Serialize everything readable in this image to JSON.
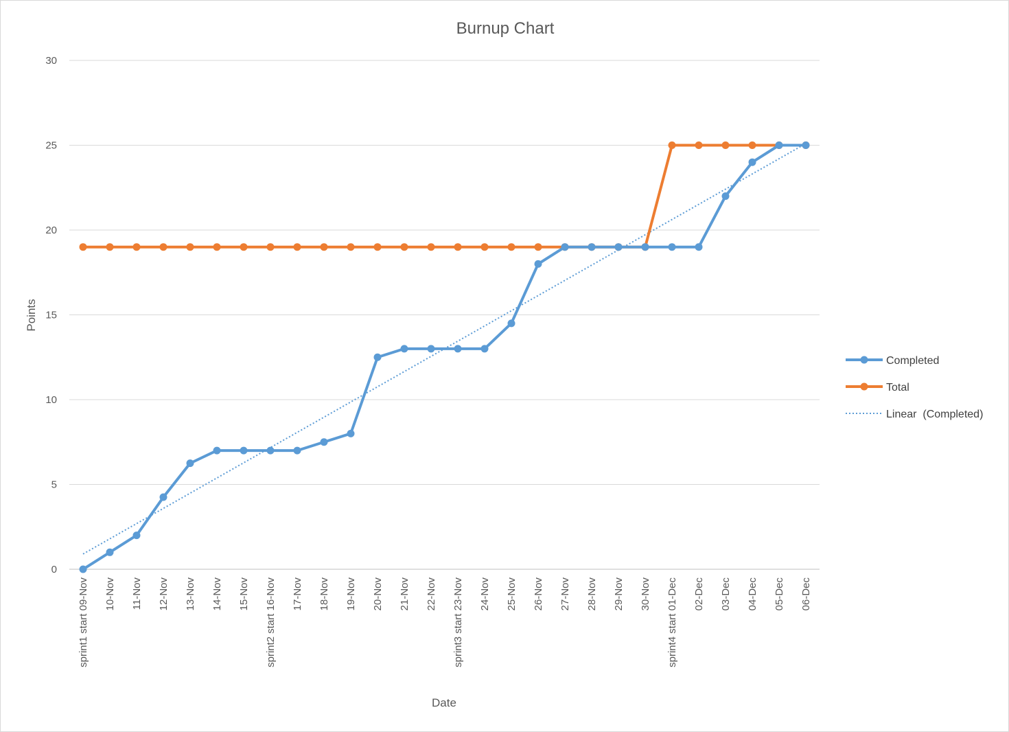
{
  "chart_data": {
    "type": "line",
    "title": "Burnup Chart",
    "xlabel": "Date",
    "ylabel": "Points",
    "ylim": [
      0,
      30
    ],
    "yticks": [
      0,
      5,
      10,
      15,
      20,
      25,
      30
    ],
    "grid": true,
    "legend_position": "right",
    "categories": [
      "sprint1 start 09-Nov",
      "10-Nov",
      "11-Nov",
      "12-Nov",
      "13-Nov",
      "14-Nov",
      "15-Nov",
      "sprint2 start 16-Nov",
      "17-Nov",
      "18-Nov",
      "19-Nov",
      "20-Nov",
      "21-Nov",
      "22-Nov",
      "sprint3 start 23-Nov",
      "24-Nov",
      "25-Nov",
      "26-Nov",
      "27-Nov",
      "28-Nov",
      "29-Nov",
      "30-Nov",
      "sprint4 start 01-Dec",
      "02-Dec",
      "03-Dec",
      "04-Dec",
      "05-Dec",
      "06-Dec"
    ],
    "series": [
      {
        "name": "Completed",
        "color": "#5b9bd5",
        "values": [
          0,
          1,
          2,
          4.25,
          6.25,
          7,
          7,
          7,
          7,
          7.5,
          8,
          12.5,
          13,
          13,
          13,
          13,
          14.5,
          18,
          19,
          19,
          19,
          19,
          19,
          19,
          22,
          24,
          25,
          25
        ]
      },
      {
        "name": "Total",
        "color": "#ed7d31",
        "values": [
          19,
          19,
          19,
          19,
          19,
          19,
          19,
          19,
          19,
          19,
          19,
          19,
          19,
          19,
          19,
          19,
          19,
          19,
          19,
          19,
          19,
          19,
          25,
          25,
          25,
          25,
          25,
          25
        ]
      }
    ],
    "trendline": {
      "name": "Linear  (Completed)",
      "color": "#5b9bd5",
      "style": "dotted",
      "start": 0.9,
      "end": 25.1
    }
  }
}
